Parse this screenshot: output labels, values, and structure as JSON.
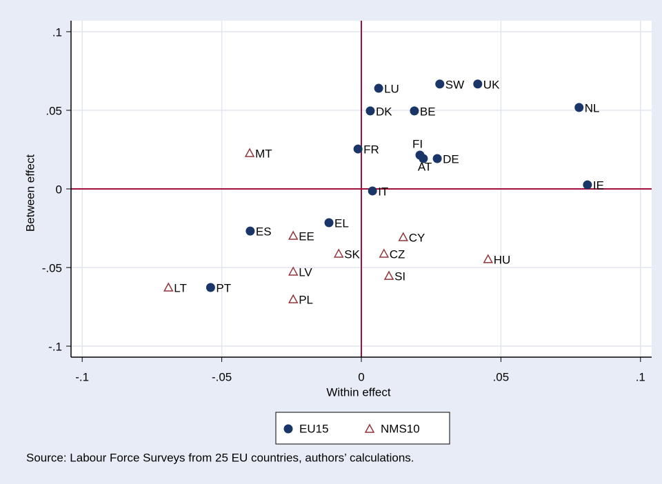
{
  "chart_data": {
    "type": "scatter",
    "xlabel": "Within effect",
    "ylabel": "Between effect",
    "note": "Source: Labour Force Surveys from 25 EU countries, authors’ calculations.",
    "xlim": [
      -0.104,
      0.104
    ],
    "ylim": [
      -0.107,
      0.107
    ],
    "xticks": [
      {
        "value": -0.1,
        "label": "-.1"
      },
      {
        "value": -0.05,
        "label": "-.05"
      },
      0,
      {
        "value": 0.05,
        "label": ".05"
      },
      {
        "value": 0.1,
        "label": ".1"
      }
    ],
    "yticks": [
      {
        "value": -0.1,
        "label": "-.1"
      },
      {
        "value": -0.05,
        "label": "-.05"
      },
      0,
      {
        "value": 0.05,
        "label": ".05"
      },
      {
        "value": 0.1,
        "label": ".1"
      }
    ],
    "grid": true,
    "reference_lines": {
      "x": 0,
      "y": 0,
      "color": "#a0103a"
    },
    "series": [
      {
        "name": "EU15",
        "color": "#1a3668",
        "marker": "circle",
        "labels": [
          "LU",
          "SW",
          "UK",
          "DK",
          "BE",
          "NL",
          "FR",
          "FI",
          "AT",
          "DE",
          "IT",
          "IE",
          "EL",
          "ES",
          "PT"
        ],
        "x": [
          0.0062,
          0.0281,
          0.0417,
          0.0032,
          0.019,
          0.078,
          -0.0012,
          0.021,
          0.0222,
          0.0272,
          0.004,
          0.081,
          -0.0116,
          -0.0398,
          -0.054
        ],
        "values": [
          0.064,
          0.0667,
          0.0667,
          0.0496,
          0.0496,
          0.0518,
          0.0254,
          0.0215,
          0.0193,
          0.0193,
          -0.0013,
          0.0026,
          -0.0215,
          -0.0268,
          -0.0627
        ]
      },
      {
        "name": "NMS10",
        "color": "#90353b",
        "marker": "triangle",
        "labels": [
          "MT",
          "EE",
          "CY",
          "SK",
          "CZ",
          "HU",
          "LV",
          "SI",
          "LT",
          "PL"
        ],
        "x": [
          -0.04,
          -0.0244,
          0.015,
          -0.0081,
          0.0081,
          0.0454,
          -0.0244,
          0.0099,
          -0.0691,
          -0.0244
        ],
        "values": [
          0.0228,
          -0.0298,
          -0.0307,
          -0.0412,
          -0.0412,
          -0.0447,
          -0.0526,
          -0.0553,
          -0.0627,
          -0.0702
        ]
      }
    ]
  }
}
